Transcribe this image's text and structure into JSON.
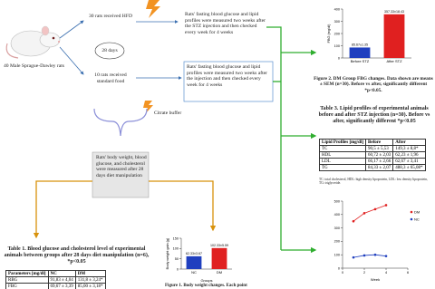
{
  "steps": {
    "population": "40 Male Sprague-Dawley rats",
    "hfd": "30 rats received HFD",
    "duration": "28 days",
    "standard": "10 rats received standard food",
    "stz_measure": "Rats' fasting blood glucose and lipid profiles were measured two weeks after the STZ injection and then checked every week for 4 weeks",
    "buffer_measure": "Rats' fasting blood glucose and lipid profiles were measured two weeks after the injection and then checked every week for 4 weeks",
    "buffer": "Citrate buffer",
    "diet_measure": "Rats' body weight, blood glucose, and cholesterol were measured after 28 days diet manipulation"
  },
  "figure2": {
    "type": "bar",
    "categories": [
      "Before STZ",
      "After STZ"
    ],
    "values": [
      85.67,
      357.33
    ],
    "value_labels": [
      "85.67±1.35",
      "357.33±18.43"
    ],
    "colors": [
      "#1f3fbf",
      "#e02020"
    ],
    "ylabel": "FBG (mg/dl)",
    "ylim": [
      0,
      400
    ],
    "yticks": [
      0,
      100,
      200,
      300,
      400
    ],
    "caption": "Figure 2. DM Group FBG changes. Data shown are means ± SEM (n=30). Before vs after, significantly different *p<0.05."
  },
  "table3": {
    "title": "Table 3. Lipid profiles of experimental animals before and after STZ injection (n=30). Before vs after, significantly different *p<0.05",
    "header": [
      "Lipid Profiles [mg/dl]",
      "Before",
      "After"
    ],
    "rows": [
      [
        "TC",
        "90,5 ± 5,53",
        "149,3 ± 8,8*"
      ],
      [
        "HDL",
        "60,72 ± 2,03",
        "62,23 ± 1,96"
      ],
      [
        "LDL",
        "66,17 ± 2,66",
        "62,67 ± 3,41"
      ],
      [
        "TG",
        "84,33 ± 2,07",
        "488,3 ± 65,08*"
      ]
    ],
    "footnote": "TC: total cholesterol, HDL: high density lipoprotein, LDL: low density lipoprotein, TG: triglyceride."
  },
  "figure3": {
    "type": "line",
    "x": [
      1,
      2,
      3,
      4
    ],
    "xlim": [
      0,
      6
    ],
    "xticks": [
      0,
      2,
      4,
      6
    ],
    "xlabel": "Week",
    "ylim": [
      0,
      500
    ],
    "yticks": [
      0,
      100,
      200,
      300,
      400,
      500
    ],
    "series": [
      {
        "name": "DM",
        "color": "#e02020",
        "values": [
          350,
          410,
          440,
          470
        ]
      },
      {
        "name": "NC",
        "color": "#1f3fbf",
        "values": [
          80,
          95,
          100,
          90
        ]
      }
    ]
  },
  "table1": {
    "title": "Table 1. Blood glucose and cholesterol level of experimental animals between groups after 28 days diet manipulation (n=6), *p<0.05",
    "header": [
      "Parameters [mg/dl]",
      "NC",
      "DM"
    ],
    "rows": [
      [
        "RBG",
        "91,83 ± 4,04",
        "131,8 ± 3,24*"
      ],
      [
        "FBG",
        "69,67 ± 3,39",
        "85,00 ± 3,18*"
      ],
      [
        "TC",
        "62,67 ± 3,90",
        "95,00 ± 4,37*"
      ]
    ]
  },
  "figure1": {
    "type": "bar",
    "categories": [
      "NC",
      "DM"
    ],
    "values": [
      62.33,
      102.33
    ],
    "value_labels": [
      "62.33±3.67",
      "102.33±5.59"
    ],
    "colors": [
      "#1f3fbf",
      "#e02020"
    ],
    "ylabel": "Body weight gain (g)",
    "xlabel": "Groups",
    "ylim": [
      0,
      150
    ],
    "yticks": [
      0,
      50,
      100,
      150
    ],
    "caption": "Figure 1. Body weight changes. Each point"
  }
}
